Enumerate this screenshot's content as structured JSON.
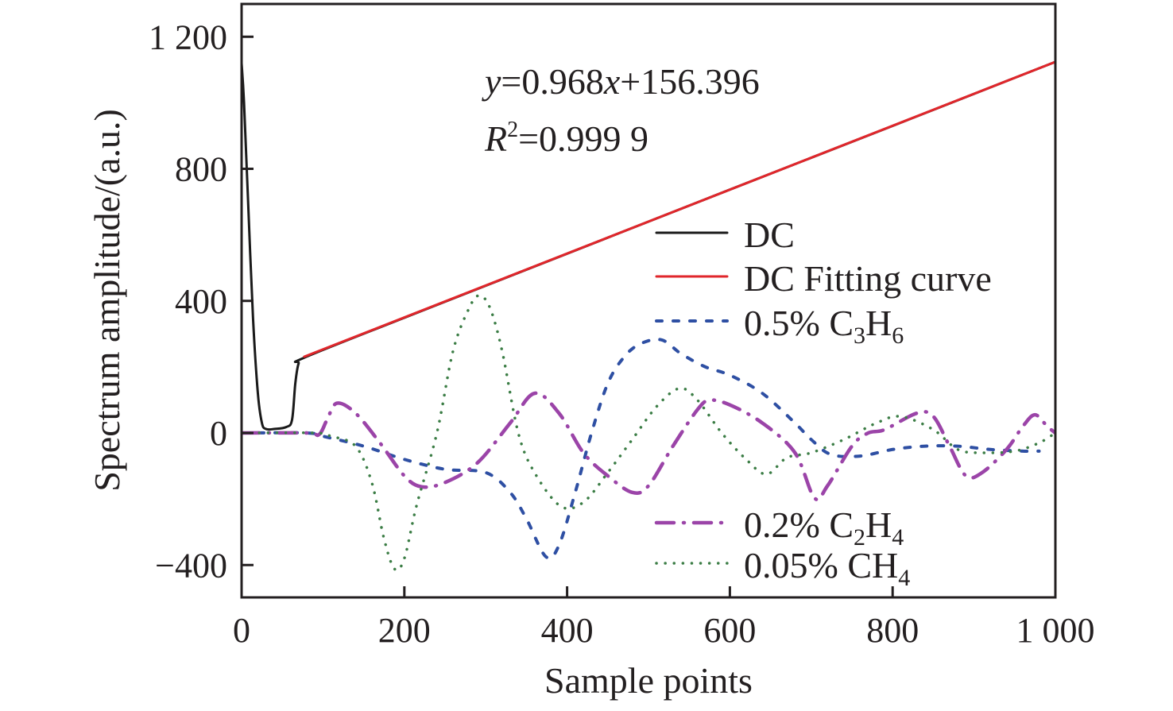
{
  "chart_data": {
    "type": "line",
    "title": "",
    "xlabel": "Sample points",
    "ylabel": "Spectrum amplitude/(a.u.)",
    "xlim": [
      0,
      1000
    ],
    "ylim": [
      -500,
      1300
    ],
    "grid": false,
    "x_ticks": [
      0,
      200,
      400,
      600,
      800,
      1000
    ],
    "x_tick_labels": [
      "0",
      "200",
      "400",
      "600",
      "800",
      "1 000"
    ],
    "y_ticks": [
      -400,
      0,
      400,
      800,
      1200
    ],
    "y_tick_labels": [
      "−400",
      "0",
      "400",
      "800",
      "1 200"
    ],
    "annotations": {
      "equation": {
        "y": "y",
        "eq1": "=0.968",
        "x": "x",
        "eq2": "+156.396"
      },
      "r2": {
        "R": "R",
        "sup": "2",
        "value": "=0.999 9"
      }
    },
    "fit": {
      "slope": 0.968,
      "intercept": 156.396,
      "r_squared": 0.9999
    },
    "legend_placement": "right (split: upper-right and lower-right)",
    "series": [
      {
        "name": "DC",
        "legend": {
          "main": "DC",
          "sub1": "",
          "mid": "",
          "sub2": ""
        },
        "color": "#1a1a1a",
        "style": "solid",
        "points": [
          [
            0,
            1120
          ],
          [
            3,
            1000
          ],
          [
            8,
            700
          ],
          [
            14,
            350
          ],
          [
            20,
            120
          ],
          [
            25,
            30
          ],
          [
            30,
            12
          ],
          [
            40,
            12
          ],
          [
            55,
            18
          ],
          [
            62,
            40
          ],
          [
            66,
            150
          ],
          [
            70,
            210
          ],
          [
            77,
            228
          ],
          [
            200,
            349
          ],
          [
            400,
            543
          ],
          [
            600,
            737
          ],
          [
            800,
            930
          ],
          [
            1000,
            1124
          ]
        ]
      },
      {
        "name": "DC Fitting curve",
        "legend": {
          "main": "DC Fitting curve",
          "sub1": "",
          "mid": "",
          "sub2": ""
        },
        "color": "#e0262b",
        "style": "solid",
        "points": [
          [
            77,
            231
          ],
          [
            1000,
            1124
          ]
        ]
      },
      {
        "name": "0.5% C3H6",
        "legend": {
          "main": "0.5% C",
          "sub1": "3",
          "mid": "H",
          "sub2": "6"
        },
        "color": "#2e4fa3",
        "style": "dashed",
        "points": [
          [
            0,
            0
          ],
          [
            80,
            0
          ],
          [
            100,
            -10
          ],
          [
            150,
            -40
          ],
          [
            200,
            -80
          ],
          [
            250,
            -110
          ],
          [
            300,
            -120
          ],
          [
            330,
            -180
          ],
          [
            350,
            -260
          ],
          [
            374,
            -375
          ],
          [
            390,
            -340
          ],
          [
            410,
            -180
          ],
          [
            430,
            0
          ],
          [
            450,
            150
          ],
          [
            470,
            230
          ],
          [
            490,
            270
          ],
          [
            516,
            282
          ],
          [
            540,
            240
          ],
          [
            570,
            200
          ],
          [
            600,
            175
          ],
          [
            640,
            120
          ],
          [
            680,
            30
          ],
          [
            700,
            -20
          ],
          [
            724,
            -65
          ],
          [
            760,
            -70
          ],
          [
            800,
            -50
          ],
          [
            840,
            -40
          ],
          [
            880,
            -40
          ],
          [
            920,
            -50
          ],
          [
            960,
            -55
          ],
          [
            980,
            -55
          ]
        ]
      },
      {
        "name": "0.2% C2H4",
        "legend": {
          "main": "0.2% C",
          "sub1": "2",
          "mid": "H",
          "sub2": "4"
        },
        "color": "#9b44a8",
        "style": "dash-dot",
        "points": [
          [
            0,
            0
          ],
          [
            80,
            0
          ],
          [
            95,
            -5
          ],
          [
            105,
            40
          ],
          [
            117,
            90
          ],
          [
            140,
            60
          ],
          [
            170,
            -30
          ],
          [
            200,
            -130
          ],
          [
            221,
            -163
          ],
          [
            250,
            -150
          ],
          [
            290,
            -90
          ],
          [
            330,
            30
          ],
          [
            360,
            120
          ],
          [
            390,
            60
          ],
          [
            420,
            -60
          ],
          [
            450,
            -130
          ],
          [
            480,
            -180
          ],
          [
            500,
            -160
          ],
          [
            530,
            -40
          ],
          [
            560,
            70
          ],
          [
            575,
            99
          ],
          [
            600,
            85
          ],
          [
            640,
            30
          ],
          [
            680,
            -60
          ],
          [
            704,
            -197
          ],
          [
            720,
            -160
          ],
          [
            750,
            -40
          ],
          [
            770,
            0
          ],
          [
            790,
            10
          ],
          [
            830,
            60
          ],
          [
            850,
            50
          ],
          [
            870,
            -40
          ],
          [
            890,
            -130
          ],
          [
            910,
            -120
          ],
          [
            940,
            -50
          ],
          [
            960,
            20
          ],
          [
            975,
            55
          ],
          [
            990,
            20
          ],
          [
            1000,
            0
          ]
        ]
      },
      {
        "name": "0.05% CH4",
        "legend": {
          "main": "0.05% CH",
          "sub1": "",
          "mid": "",
          "sub2": "4"
        },
        "color": "#3b7d45",
        "style": "dotted",
        "points": [
          [
            0,
            0
          ],
          [
            90,
            0
          ],
          [
            110,
            -10
          ],
          [
            140,
            -40
          ],
          [
            160,
            -150
          ],
          [
            175,
            -320
          ],
          [
            188,
            -412
          ],
          [
            200,
            -380
          ],
          [
            215,
            -220
          ],
          [
            240,
            0
          ],
          [
            260,
            250
          ],
          [
            280,
            380
          ],
          [
            292,
            416
          ],
          [
            305,
            380
          ],
          [
            320,
            250
          ],
          [
            340,
            0
          ],
          [
            360,
            -120
          ],
          [
            392,
            -222
          ],
          [
            420,
            -210
          ],
          [
            450,
            -120
          ],
          [
            480,
            -20
          ],
          [
            510,
            80
          ],
          [
            538,
            135
          ],
          [
            560,
            100
          ],
          [
            590,
            0
          ],
          [
            620,
            -80
          ],
          [
            645,
            -125
          ],
          [
            670,
            -75
          ],
          [
            700,
            -60
          ],
          [
            740,
            -20
          ],
          [
            780,
            30
          ],
          [
            810,
            50
          ],
          [
            850,
            10
          ],
          [
            880,
            -50
          ],
          [
            910,
            -60
          ],
          [
            950,
            -55
          ],
          [
            980,
            -30
          ],
          [
            1000,
            0
          ]
        ]
      }
    ]
  }
}
